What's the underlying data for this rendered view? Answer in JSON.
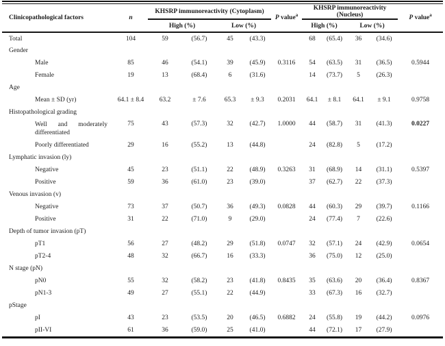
{
  "table": {
    "header": {
      "factor": "Clinicopathological factors",
      "n": "n",
      "cytoplasm": "KHSRP immunoreactivity (Cytoplasm)",
      "nucleus": "KHSRP immunoreactivity (Nucleus)",
      "high": "High (%)",
      "low": "Low (%)",
      "p_italic": "P",
      "p_rest": " value",
      "p_sup": "a"
    },
    "column_names": [
      "n",
      "cyt-high-count",
      "cyt-high-pct",
      "cyt-low-count",
      "cyt-low-pct",
      "p-value-cytoplasm",
      "nuc-high-count",
      "nuc-high-pct",
      "nuc-low-count",
      "nuc-low-pct",
      "p-value-nucleus"
    ],
    "colors": {
      "text": "#1b1b1b",
      "rule": "#151515",
      "background": "#ffffff"
    },
    "rows": [
      {
        "type": "total",
        "label": "Total",
        "values": [
          "104",
          "59",
          "(56.7)",
          "45",
          "(43.3)",
          "",
          "68",
          "(65.4)",
          "36",
          "(34.6)",
          ""
        ]
      },
      {
        "type": "section",
        "label": "Gender"
      },
      {
        "type": "item",
        "label": "Male",
        "values": [
          "85",
          "46",
          "(54.1)",
          "39",
          "(45.9)",
          "0.3116",
          "54",
          "(63.5)",
          "31",
          "(36.5)",
          "0.5944"
        ]
      },
      {
        "type": "item",
        "label": "Female",
        "values": [
          "19",
          "13",
          "(68.4)",
          "6",
          "(31.6)",
          "",
          "14",
          "(73.7)",
          "5",
          "(26.3)",
          ""
        ]
      },
      {
        "type": "section",
        "label": "Age"
      },
      {
        "type": "item",
        "label": "Mean ± SD (yr)",
        "values": [
          "64.1 ± 8.4",
          "63.2",
          "± 7.6",
          "65.3",
          "± 9.3",
          "0.2031",
          "64.1",
          "± 8.1",
          "64.1",
          "± 9.1",
          "0.9758"
        ]
      },
      {
        "type": "section",
        "label": "Histopathological grading"
      },
      {
        "type": "item",
        "label": "Well and moderately differentiated",
        "wrap": true,
        "bold": [
          10
        ],
        "values": [
          "75",
          "43",
          "(57.3)",
          "32",
          "(42.7)",
          "1.0000",
          "44",
          "(58.7)",
          "31",
          "(41.3)",
          "0.0227"
        ]
      },
      {
        "type": "item",
        "label": "Poorly differentiated",
        "values": [
          "29",
          "16",
          "(55.2)",
          "13",
          "(44.8)",
          "",
          "24",
          "(82.8)",
          "5",
          "(17.2)",
          ""
        ]
      },
      {
        "type": "section",
        "label": "Lymphatic invasion (ly)"
      },
      {
        "type": "item",
        "label": "Negative",
        "values": [
          "45",
          "23",
          "(51.1)",
          "22",
          "(48.9)",
          "0.3263",
          "31",
          "(68.9)",
          "14",
          "(31.1)",
          "0.5397"
        ]
      },
      {
        "type": "item",
        "label": "Positive",
        "values": [
          "59",
          "36",
          "(61.0)",
          "23",
          "(39.0)",
          "",
          "37",
          "(62.7)",
          "22",
          "(37.3)",
          ""
        ]
      },
      {
        "type": "section",
        "label": "Venous invasion (v)"
      },
      {
        "type": "item",
        "label": "Negative",
        "values": [
          "73",
          "37",
          "(50.7)",
          "36",
          "(49.3)",
          "0.0828",
          "44",
          "(60.3)",
          "29",
          "(39.7)",
          "0.1166"
        ]
      },
      {
        "type": "item",
        "label": "Positive",
        "values": [
          "31",
          "22",
          "(71.0)",
          "9",
          "(29.0)",
          "",
          "24",
          "(77.4)",
          "7",
          "(22.6)",
          ""
        ]
      },
      {
        "type": "section",
        "label": "Depth of tumor invasion (pT)"
      },
      {
        "type": "item",
        "label": "pT1",
        "values": [
          "56",
          "27",
          "(48.2)",
          "29",
          "(51.8)",
          "0.0747",
          "32",
          "(57.1)",
          "24",
          "(42.9)",
          "0.0654"
        ]
      },
      {
        "type": "item",
        "label": "pT2-4",
        "values": [
          "48",
          "32",
          "(66.7)",
          "16",
          "(33.3)",
          "",
          "36",
          "(75.0)",
          "12",
          "(25.0)",
          ""
        ]
      },
      {
        "type": "section",
        "label": "N stage (pN)"
      },
      {
        "type": "item",
        "label": "pN0",
        "values": [
          "55",
          "32",
          "(58.2)",
          "23",
          "(41.8)",
          "0.8435",
          "35",
          "(63.6)",
          "20",
          "(36.4)",
          "0.8367"
        ]
      },
      {
        "type": "item",
        "label": "pN1-3",
        "values": [
          "49",
          "27",
          "(55.1)",
          "22",
          "(44.9)",
          "",
          "33",
          "(67.3)",
          "16",
          "(32.7)",
          ""
        ]
      },
      {
        "type": "section",
        "label": "pStage"
      },
      {
        "type": "item",
        "label": "pI",
        "values": [
          "43",
          "23",
          "(53.5)",
          "20",
          "(46.5)",
          "0.6882",
          "24",
          "(55.8)",
          "19",
          "(44.2)",
          "0.0976"
        ]
      },
      {
        "type": "item",
        "label": "pII-VI",
        "values": [
          "61",
          "36",
          "(59.0)",
          "25",
          "(41.0)",
          "",
          "44",
          "(72.1)",
          "17",
          "(27.9)",
          ""
        ]
      }
    ]
  }
}
